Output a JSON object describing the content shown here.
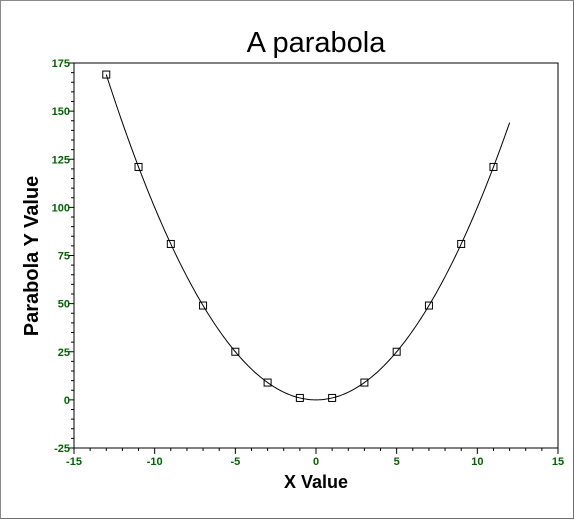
{
  "chart_data": {
    "type": "scatter",
    "title": "A parabola",
    "xlabel": "X Value",
    "ylabel": "Parabola Y Value",
    "xlim": [
      -15,
      15
    ],
    "ylim": [
      -25,
      175
    ],
    "x_ticks": [
      "-15",
      "-10",
      "-5",
      "0",
      "5",
      "10",
      "15"
    ],
    "y_ticks": [
      "-25",
      "0",
      "25",
      "50",
      "75",
      "100",
      "125",
      "150",
      "175"
    ],
    "grid": false,
    "legend": "none",
    "tick_label_color": "#006400",
    "series": [
      {
        "marker": "square",
        "line": "none",
        "x": [
          -13,
          -11,
          -9,
          -7,
          -5,
          -3,
          -1,
          1,
          3,
          5,
          7,
          9,
          11
        ],
        "y": [
          169,
          121,
          81,
          49,
          25,
          9,
          1,
          1,
          9,
          25,
          49,
          81,
          121
        ]
      },
      {
        "marker": "none",
        "line": "solid",
        "x": [
          -13,
          12
        ],
        "function": "y = x^2"
      }
    ]
  }
}
